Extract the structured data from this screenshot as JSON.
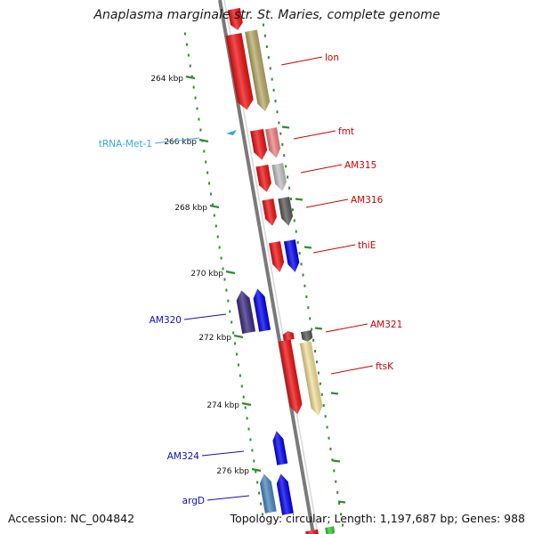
{
  "title": "Anaplasma marginale str. St. Maries, complete genome",
  "footer": {
    "accession": "Accession: NC_004842",
    "topology": "Topology: circular; Length: 1,197,687 bp; Genes: 988"
  },
  "colors": {
    "backbone": "#8a8a8a",
    "tick": "#2f8f2f",
    "tick_label": "#111111",
    "label_red": "#d40000",
    "label_blue": "#1010c0",
    "label_trna": "#33aadd"
  },
  "ticks": [
    {
      "label": "264 kbp"
    },
    {
      "label": "266 kbp"
    },
    {
      "label": "268 kbp"
    },
    {
      "label": "270 kbp"
    },
    {
      "label": "272 kbp"
    },
    {
      "label": "274 kbp"
    },
    {
      "label": "276 kbp"
    }
  ],
  "genes": [
    {
      "name": "lon",
      "strand": "forward",
      "cog_color": "#b8aa68"
    },
    {
      "name": "fmt",
      "strand": "forward",
      "cog_color": "#f08080"
    },
    {
      "name": "AM315",
      "strand": "forward",
      "cog_color": "#c0c0c0"
    },
    {
      "name": "AM316",
      "strand": "forward",
      "cog_color": "#585858"
    },
    {
      "name": "thiE",
      "strand": "forward",
      "cog_color": "#0000ee"
    },
    {
      "name": "AM321",
      "strand": "forward",
      "cog_color": "#555555"
    },
    {
      "name": "ftsK",
      "strand": "forward",
      "cog_color": "#f3e09a"
    },
    {
      "name": "tRNA-Met-1",
      "strand": "reverse",
      "cog_color": "#33aadd"
    },
    {
      "name": "AM320",
      "strand": "reverse",
      "cog_color": "#3a2a80"
    },
    {
      "name": "AM324",
      "strand": "reverse",
      "cog_color": "#0000ee"
    },
    {
      "name": "argD",
      "strand": "reverse",
      "cog_color": "#4a86c0"
    }
  ]
}
